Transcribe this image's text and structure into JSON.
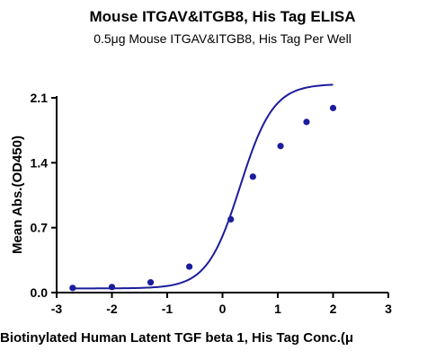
{
  "chart_data": {
    "type": "scatter",
    "title": "Mouse ITGAV&ITGB8, His Tag ELISA",
    "subtitle": "0.5μg Mouse ITGAV&ITGB8, His Tag Per Well",
    "xlabel": "Biotinylated Human Latent TGF beta 1, His Tag Conc.(μ",
    "ylabel": "Mean Abs.(OD450)",
    "xlim": [
      -3,
      3
    ],
    "ylim": [
      0,
      2.1
    ],
    "xticks": [
      -3,
      -2,
      -1,
      0,
      1,
      2,
      3
    ],
    "yticks": [
      0.0,
      0.7,
      1.4,
      2.1
    ],
    "xtick_labels": [
      "-3",
      "-2",
      "-1",
      "0",
      "1",
      "2",
      "3"
    ],
    "ytick_labels": [
      "0.0",
      "0.7",
      "1.4",
      "2.1"
    ],
    "series": [
      {
        "x": [
          -2.71,
          -2.0,
          -1.3,
          -0.6,
          0.15,
          0.55,
          1.05,
          1.52,
          2.0
        ],
        "y": [
          0.05,
          0.06,
          0.11,
          0.28,
          0.79,
          1.25,
          1.58,
          1.84,
          1.99
        ],
        "fit": "sigmoidal",
        "color": "#1c1c9c"
      }
    ],
    "grid": false,
    "legend": "none"
  }
}
